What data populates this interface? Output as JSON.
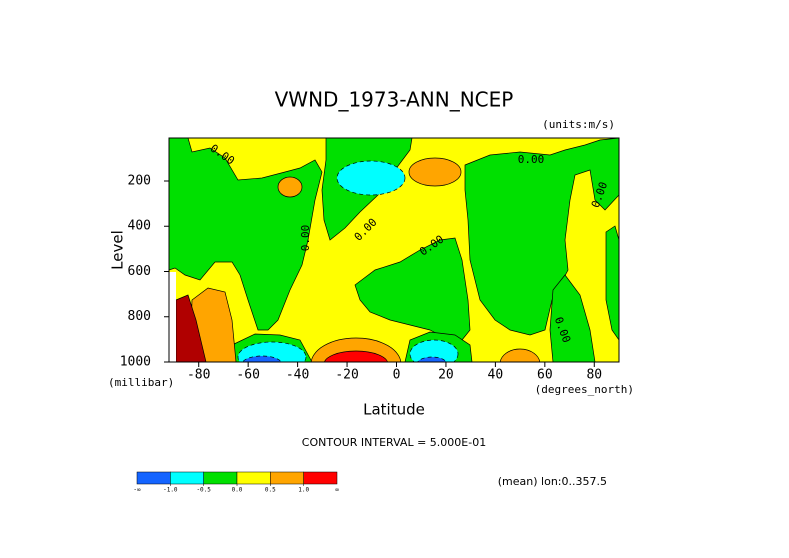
{
  "chart_data": {
    "type": "contour",
    "title": "VWND_1973-ANN_NCEP",
    "units_label": "(units:m/s)",
    "x_label": "Latitude",
    "x_units": "(degrees_north)",
    "y_label": "Level",
    "y_units": "(millibar)",
    "xlim": [
      -90,
      90
    ],
    "xticks": [
      -80,
      -60,
      -40,
      -20,
      0,
      20,
      40,
      60,
      80
    ],
    "ylim": [
      1000,
      10
    ],
    "yticks": [
      200,
      400,
      600,
      800,
      1000
    ],
    "contour_label": "0.00",
    "contour_interval": "CONTOUR INTERVAL = 5.000E-01",
    "footnote": "(mean) lon:0..357.5",
    "colorbar": {
      "colors": [
        "#1464ff",
        "#00ffff",
        "#00e000",
        "#ffff00",
        "#ffa500",
        "#ff0000"
      ],
      "end_labels": [
        "-∞",
        "∞"
      ],
      "boundaries": [
        {
          "value": -1.0,
          "label": "-1.0"
        },
        {
          "value": -0.5,
          "label": "-0.5"
        },
        {
          "value": 0,
          "label": "0.0"
        },
        {
          "value": 0.5,
          "label": "0.5"
        },
        {
          "value": 1.0,
          "label": "1.0"
        }
      ]
    }
  }
}
